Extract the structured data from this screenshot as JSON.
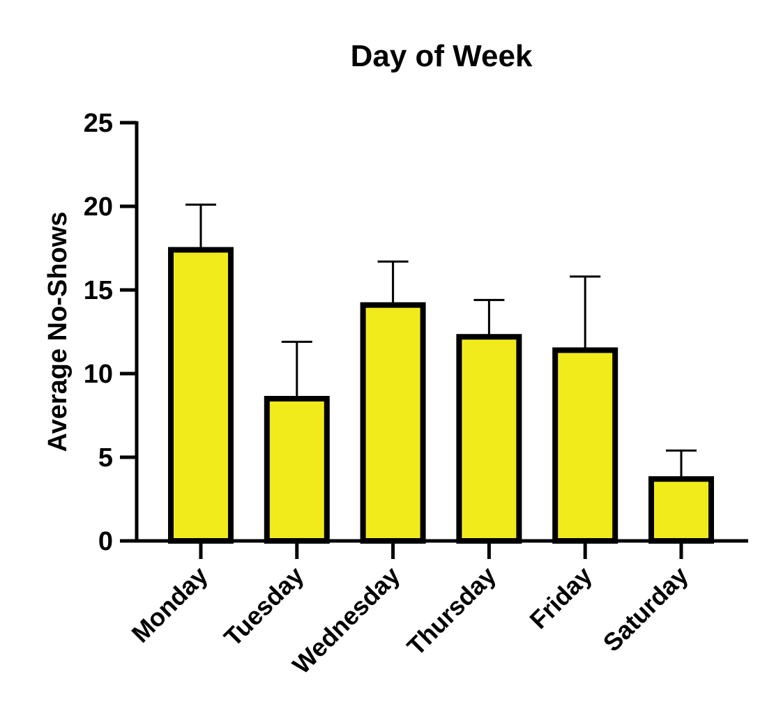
{
  "chart_data": {
    "type": "bar",
    "title": "Day of Week",
    "xlabel": "",
    "ylabel": "Average No-Shows",
    "categories": [
      "Monday",
      "Tuesday",
      "Wednesday",
      "Thursday",
      "Friday",
      "Saturday"
    ],
    "values": [
      17.4,
      8.5,
      14.1,
      12.2,
      11.4,
      3.7
    ],
    "error_upper": [
      2.7,
      3.4,
      2.6,
      2.2,
      4.4,
      1.7
    ],
    "ylim": [
      0,
      25
    ],
    "yticks": [
      "0",
      "5",
      "10",
      "15",
      "20",
      "25"
    ],
    "grid": false,
    "bar_fill_color": "#f2eb1c",
    "bar_edge_color": "#000000"
  }
}
